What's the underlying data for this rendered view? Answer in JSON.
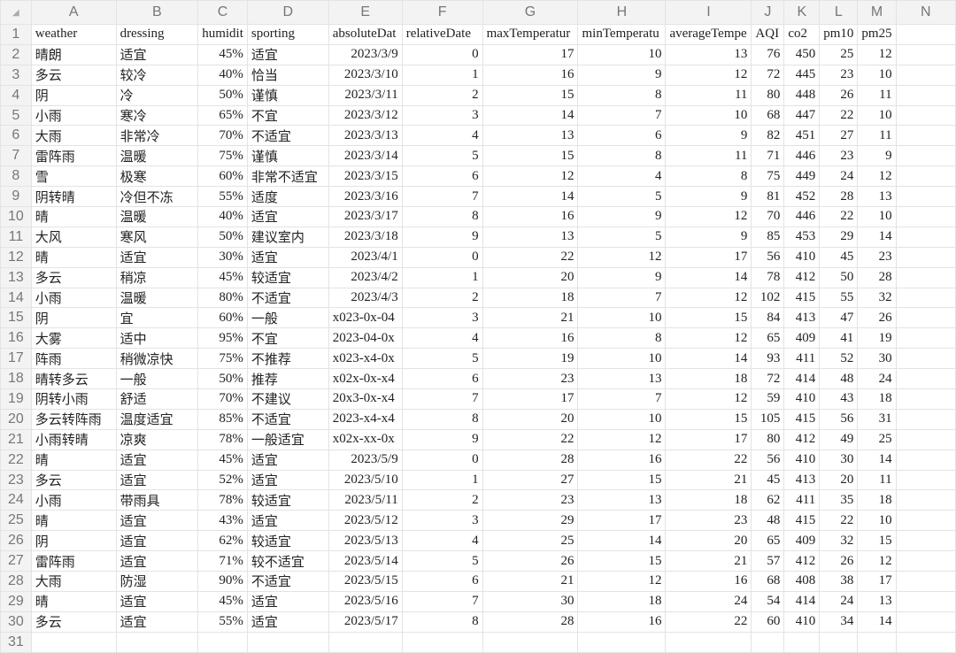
{
  "sheet": {
    "column_letters": [
      "A",
      "B",
      "C",
      "D",
      "E",
      "F",
      "G",
      "H",
      "I",
      "J",
      "K",
      "L",
      "M",
      "N"
    ],
    "header_row": [
      "weather",
      "dressing",
      "humidit",
      "sporting",
      "absoluteDat",
      "relativeDate",
      "maxTemperatur",
      "minTemperatu",
      "averageTempe",
      "AQI",
      "co2",
      "pm10",
      "pm25",
      ""
    ],
    "rows": [
      [
        "晴朗",
        "适宜",
        "45%",
        "适宜",
        "2023/3/9",
        "0",
        "17",
        "10",
        "13",
        "76",
        "450",
        "25",
        "12"
      ],
      [
        "多云",
        "较冷",
        "40%",
        "恰当",
        "2023/3/10",
        "1",
        "16",
        "9",
        "12",
        "72",
        "445",
        "23",
        "10"
      ],
      [
        "阴",
        "冷",
        "50%",
        "谨慎",
        "2023/3/11",
        "2",
        "15",
        "8",
        "11",
        "80",
        "448",
        "26",
        "11"
      ],
      [
        "小雨",
        "寒冷",
        "65%",
        "不宜",
        "2023/3/12",
        "3",
        "14",
        "7",
        "10",
        "68",
        "447",
        "22",
        "10"
      ],
      [
        "大雨",
        "非常冷",
        "70%",
        "不适宜",
        "2023/3/13",
        "4",
        "13",
        "6",
        "9",
        "82",
        "451",
        "27",
        "11"
      ],
      [
        "雷阵雨",
        "温暖",
        "75%",
        "谨慎",
        "2023/3/14",
        "5",
        "15",
        "8",
        "11",
        "71",
        "446",
        "23",
        "9"
      ],
      [
        "雪",
        "极寒",
        "60%",
        "非常不适宜",
        "2023/3/15",
        "6",
        "12",
        "4",
        "8",
        "75",
        "449",
        "24",
        "12"
      ],
      [
        "阴转晴",
        "冷但不冻",
        "55%",
        "适度",
        "2023/3/16",
        "7",
        "14",
        "5",
        "9",
        "81",
        "452",
        "28",
        "13"
      ],
      [
        "晴",
        "温暖",
        "40%",
        "适宜",
        "2023/3/17",
        "8",
        "16",
        "9",
        "12",
        "70",
        "446",
        "22",
        "10"
      ],
      [
        "大风",
        "寒风",
        "50%",
        "建议室内",
        "2023/3/18",
        "9",
        "13",
        "5",
        "9",
        "85",
        "453",
        "29",
        "14"
      ],
      [
        "晴",
        "适宜",
        "30%",
        "适宜",
        "2023/4/1",
        "0",
        "22",
        "12",
        "17",
        "56",
        "410",
        "45",
        "23"
      ],
      [
        "多云",
        "稍凉",
        "45%",
        "较适宜",
        "2023/4/2",
        "1",
        "20",
        "9",
        "14",
        "78",
        "412",
        "50",
        "28"
      ],
      [
        "小雨",
        "温暖",
        "80%",
        "不适宜",
        "2023/4/3",
        "2",
        "18",
        "7",
        "12",
        "102",
        "415",
        "55",
        "32"
      ],
      [
        "阴",
        "宜",
        "60%",
        "一般",
        "x023-0x-04",
        "3",
        "21",
        "10",
        "15",
        "84",
        "413",
        "47",
        "26"
      ],
      [
        "大雾",
        "适中",
        "95%",
        "不宜",
        "2023-04-0x",
        "4",
        "16",
        "8",
        "12",
        "65",
        "409",
        "41",
        "19"
      ],
      [
        "阵雨",
        "稍微凉快",
        "75%",
        "不推荐",
        "x023-x4-0x",
        "5",
        "19",
        "10",
        "14",
        "93",
        "411",
        "52",
        "30"
      ],
      [
        "晴转多云",
        "一般",
        "50%",
        "推荐",
        "x02x-0x-x4",
        "6",
        "23",
        "13",
        "18",
        "72",
        "414",
        "48",
        "24"
      ],
      [
        "阴转小雨",
        "舒适",
        "70%",
        "不建议",
        "20x3-0x-x4",
        "7",
        "17",
        "7",
        "12",
        "59",
        "410",
        "43",
        "18"
      ],
      [
        "多云转阵雨",
        "温度适宜",
        "85%",
        "不适宜",
        "2023-x4-x4",
        "8",
        "20",
        "10",
        "15",
        "105",
        "415",
        "56",
        "31"
      ],
      [
        "小雨转晴",
        "凉爽",
        "78%",
        "一般适宜",
        "x02x-xx-0x",
        "9",
        "22",
        "12",
        "17",
        "80",
        "412",
        "49",
        "25"
      ],
      [
        "晴",
        "适宜",
        "45%",
        "适宜",
        "2023/5/9",
        "0",
        "28",
        "16",
        "22",
        "56",
        "410",
        "30",
        "14"
      ],
      [
        "多云",
        "适宜",
        "52%",
        "适宜",
        "2023/5/10",
        "1",
        "27",
        "15",
        "21",
        "45",
        "413",
        "20",
        "11"
      ],
      [
        "小雨",
        "带雨具",
        "78%",
        "较适宜",
        "2023/5/11",
        "2",
        "23",
        "13",
        "18",
        "62",
        "411",
        "35",
        "18"
      ],
      [
        "晴",
        "适宜",
        "43%",
        "适宜",
        "2023/5/12",
        "3",
        "29",
        "17",
        "23",
        "48",
        "415",
        "22",
        "10"
      ],
      [
        "阴",
        "适宜",
        "62%",
        "较适宜",
        "2023/5/13",
        "4",
        "25",
        "14",
        "20",
        "65",
        "409",
        "32",
        "15"
      ],
      [
        "雷阵雨",
        "适宜",
        "71%",
        "较不适宜",
        "2023/5/14",
        "5",
        "26",
        "15",
        "21",
        "57",
        "412",
        "26",
        "12"
      ],
      [
        "大雨",
        "防湿",
        "90%",
        "不适宜",
        "2023/5/15",
        "6",
        "21",
        "12",
        "16",
        "68",
        "408",
        "38",
        "17"
      ],
      [
        "晴",
        "适宜",
        "45%",
        "适宜",
        "2023/5/16",
        "7",
        "30",
        "18",
        "24",
        "54",
        "414",
        "24",
        "13"
      ],
      [
        "多云",
        "适宜",
        "55%",
        "适宜",
        "2023/5/17",
        "8",
        "28",
        "16",
        "22",
        "60",
        "410",
        "34",
        "14"
      ],
      [
        "",
        "",
        "",
        "",
        "",
        "",
        "",
        "",
        "",
        "",
        "",
        "",
        ""
      ]
    ],
    "right_aligned_columns": [
      2,
      4,
      5,
      6,
      7,
      8,
      9,
      10,
      11,
      12
    ],
    "left_aligned_value_pattern": "x"
  }
}
